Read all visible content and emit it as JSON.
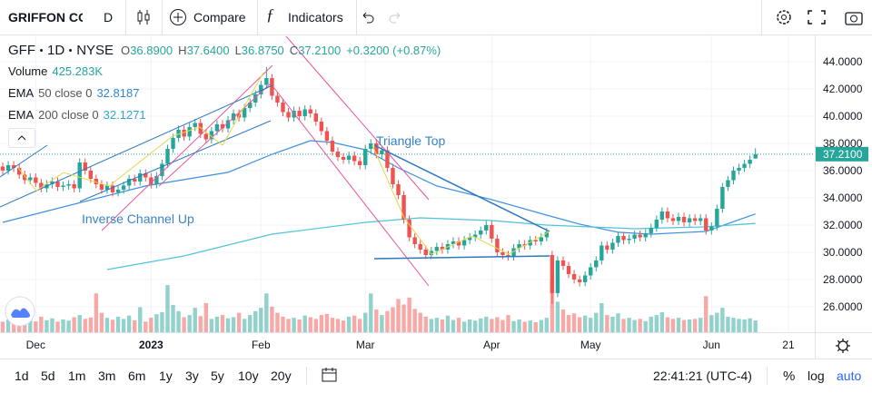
{
  "toolbar": {
    "symbol": "GRIFFON CO",
    "interval": "D",
    "compare": "Compare",
    "indicators": "Indicators"
  },
  "legend": {
    "ticker": "GFF",
    "interval": "1D",
    "exchange": "NYSE",
    "o_label": "O",
    "open": "36.8900",
    "h_label": "H",
    "high": "37.6400",
    "l_label": "L",
    "low": "36.8750",
    "c_label": "C",
    "close": "37.2100",
    "change": "+0.3200 (+0.87%)",
    "volume_label": "Volume",
    "volume": "425.283K",
    "ema50_name": "EMA",
    "ema50_params": "50 close 0",
    "ema50_value": "32.8187",
    "ema200_name": "EMA",
    "ema200_params": "200 close 0",
    "ema200_value": "32.1271"
  },
  "chart_data": {
    "type": "candlestick",
    "up_color": "#26a69a",
    "down_color": "#ef5350",
    "grid": true,
    "xlim": [
      -0.5,
      147.8
    ],
    "ylim": [
      24.13,
      46
    ],
    "xticks": [
      {
        "value": 6,
        "label": "Dec"
      },
      {
        "value": 27,
        "label": "2023"
      },
      {
        "value": 47,
        "label": "Feb"
      },
      {
        "value": 66,
        "label": "Mar"
      },
      {
        "value": 89,
        "label": "Apr"
      },
      {
        "value": 107,
        "label": "May"
      },
      {
        "value": 129,
        "label": "Jun"
      },
      {
        "value": 143,
        "label": "21"
      }
    ],
    "yticks": [
      {
        "value": 44,
        "label": "44.0000"
      },
      {
        "value": 42,
        "label": "42.0000"
      },
      {
        "value": 40,
        "label": "40.0000"
      },
      {
        "value": 38,
        "label": "38.0000"
      },
      {
        "value": 36,
        "label": "36.0000"
      },
      {
        "value": 34,
        "label": "34.0000"
      },
      {
        "value": 32,
        "label": "32.0000"
      },
      {
        "value": 30,
        "label": "30.0000"
      },
      {
        "value": 28,
        "label": "28.0000"
      },
      {
        "value": 26,
        "label": "26.0000"
      }
    ],
    "last_label": "37.2100",
    "annotations": [
      "Triangle Top",
      "Inverse Channel Up"
    ],
    "ohlc": [
      [
        36.3,
        36.6,
        35.7,
        36.0
      ],
      [
        36.0,
        36.7,
        35.7,
        36.4
      ],
      [
        36.4,
        36.7,
        35.9,
        36.2
      ],
      [
        36.2,
        36.5,
        35.4,
        35.7
      ],
      [
        35.7,
        36.0,
        35.0,
        35.3
      ],
      [
        35.3,
        35.8,
        35.0,
        35.5
      ],
      [
        35.5,
        35.8,
        34.8,
        35.1
      ],
      [
        35.1,
        35.4,
        34.4,
        34.7
      ],
      [
        34.7,
        35.3,
        34.4,
        35.0
      ],
      [
        35.0,
        35.5,
        34.7,
        35.2
      ],
      [
        35.2,
        35.5,
        34.5,
        34.8
      ],
      [
        34.8,
        35.2,
        34.5,
        34.9
      ],
      [
        34.9,
        35.3,
        34.6,
        35.0
      ],
      [
        35.0,
        35.3,
        34.4,
        34.7
      ],
      [
        34.7,
        36.9,
        34.4,
        36.6
      ],
      [
        36.6,
        36.9,
        35.7,
        36.0
      ],
      [
        36.0,
        36.3,
        35.1,
        35.4
      ],
      [
        35.4,
        35.7,
        34.7,
        35.0
      ],
      [
        35.0,
        35.3,
        34.3,
        34.6
      ],
      [
        34.6,
        35.2,
        34.3,
        34.9
      ],
      [
        34.9,
        35.2,
        34.1,
        34.4
      ],
      [
        34.4,
        34.9,
        34.1,
        34.6
      ],
      [
        34.6,
        35.2,
        34.3,
        34.9
      ],
      [
        34.9,
        35.7,
        34.6,
        35.4
      ],
      [
        35.4,
        35.7,
        34.9,
        35.2
      ],
      [
        35.2,
        36.1,
        34.9,
        35.8
      ],
      [
        35.8,
        36.1,
        35.2,
        35.5
      ],
      [
        35.5,
        35.8,
        34.7,
        35.0
      ],
      [
        35.0,
        35.9,
        34.7,
        35.6
      ],
      [
        35.6,
        36.8,
        35.3,
        36.5
      ],
      [
        36.5,
        37.9,
        36.2,
        37.6
      ],
      [
        37.6,
        38.7,
        37.3,
        38.4
      ],
      [
        38.4,
        39.3,
        38.1,
        39.0
      ],
      [
        39.0,
        39.3,
        38.2,
        38.5
      ],
      [
        38.5,
        39.5,
        38.2,
        39.2
      ],
      [
        39.2,
        39.8,
        38.9,
        39.5
      ],
      [
        39.5,
        39.8,
        38.4,
        38.7
      ],
      [
        38.7,
        39.0,
        38.0,
        38.3
      ],
      [
        38.3,
        39.2,
        38.0,
        38.9
      ],
      [
        38.9,
        39.7,
        38.6,
        39.4
      ],
      [
        39.4,
        39.7,
        38.8,
        39.1
      ],
      [
        39.1,
        40.0,
        38.8,
        39.7
      ],
      [
        39.7,
        40.5,
        39.4,
        40.2
      ],
      [
        40.2,
        40.5,
        39.6,
        39.9
      ],
      [
        39.9,
        40.9,
        39.6,
        40.6
      ],
      [
        40.6,
        41.3,
        40.3,
        41.0
      ],
      [
        41.0,
        41.9,
        40.7,
        41.6
      ],
      [
        41.6,
        42.6,
        41.3,
        42.3
      ],
      [
        42.3,
        43.6,
        42.0,
        42.8
      ],
      [
        42.8,
        43.1,
        41.2,
        41.5
      ],
      [
        41.5,
        41.8,
        40.7,
        41.0
      ],
      [
        41.0,
        41.3,
        40.0,
        40.3
      ],
      [
        40.3,
        40.6,
        39.6,
        39.9
      ],
      [
        39.9,
        40.7,
        39.6,
        40.4
      ],
      [
        40.4,
        40.7,
        39.7,
        40.0
      ],
      [
        40.0,
        40.8,
        39.7,
        40.5
      ],
      [
        40.5,
        40.8,
        39.9,
        40.2
      ],
      [
        40.2,
        40.5,
        39.3,
        39.6
      ],
      [
        39.6,
        39.9,
        38.6,
        38.9
      ],
      [
        38.9,
        39.2,
        37.9,
        38.2
      ],
      [
        38.2,
        38.5,
        37.1,
        37.4
      ],
      [
        37.4,
        37.7,
        36.7,
        37.0
      ],
      [
        37.0,
        37.3,
        36.5,
        36.8
      ],
      [
        36.8,
        37.4,
        36.5,
        37.1
      ],
      [
        37.1,
        37.4,
        36.4,
        36.7
      ],
      [
        36.7,
        37.0,
        36.1,
        36.4
      ],
      [
        36.4,
        37.9,
        36.1,
        37.6
      ],
      [
        37.6,
        38.3,
        37.3,
        38.0
      ],
      [
        38.0,
        38.3,
        36.9,
        37.2
      ],
      [
        37.2,
        37.8,
        36.9,
        37.5
      ],
      [
        37.5,
        37.8,
        35.9,
        36.2
      ],
      [
        36.2,
        36.5,
        34.7,
        35.0
      ],
      [
        35.0,
        35.3,
        33.9,
        34.2
      ],
      [
        34.2,
        34.5,
        32.1,
        32.4
      ],
      [
        32.4,
        32.7,
        30.8,
        31.1
      ],
      [
        31.1,
        31.4,
        30.3,
        30.6
      ],
      [
        30.6,
        30.9,
        29.9,
        30.2
      ],
      [
        30.2,
        30.5,
        29.5,
        29.8
      ],
      [
        29.8,
        30.4,
        29.5,
        30.1
      ],
      [
        30.1,
        30.7,
        29.8,
        30.4
      ],
      [
        30.4,
        30.7,
        29.9,
        30.2
      ],
      [
        30.2,
        30.9,
        29.9,
        30.6
      ],
      [
        30.6,
        31.1,
        30.3,
        30.8
      ],
      [
        30.8,
        31.1,
        30.2,
        30.5
      ],
      [
        30.5,
        31.2,
        30.2,
        30.9
      ],
      [
        30.9,
        31.4,
        30.6,
        31.1
      ],
      [
        31.1,
        31.6,
        30.8,
        31.3
      ],
      [
        31.3,
        31.9,
        31.0,
        31.6
      ],
      [
        31.6,
        32.3,
        31.3,
        32.0
      ],
      [
        32.0,
        32.3,
        30.7,
        31.0
      ],
      [
        31.0,
        31.3,
        29.7,
        30.0
      ],
      [
        30.0,
        30.3,
        29.5,
        29.8
      ],
      [
        29.8,
        30.1,
        29.4,
        29.7
      ],
      [
        29.7,
        30.6,
        29.4,
        30.3
      ],
      [
        30.3,
        30.9,
        30.0,
        30.6
      ],
      [
        30.6,
        30.9,
        30.2,
        30.5
      ],
      [
        30.5,
        31.2,
        30.2,
        30.9
      ],
      [
        30.9,
        31.2,
        30.5,
        30.8
      ],
      [
        30.8,
        31.4,
        30.5,
        31.1
      ],
      [
        31.1,
        31.8,
        30.8,
        31.5
      ],
      [
        29.8,
        30.1,
        26.2,
        27.0
      ],
      [
        27.0,
        29.7,
        26.7,
        29.4
      ],
      [
        29.4,
        29.7,
        28.7,
        29.0
      ],
      [
        29.0,
        29.3,
        28.1,
        28.4
      ],
      [
        28.4,
        28.7,
        27.7,
        28.0
      ],
      [
        28.0,
        28.3,
        27.5,
        27.8
      ],
      [
        27.8,
        28.6,
        27.5,
        28.3
      ],
      [
        28.3,
        29.2,
        28.0,
        28.9
      ],
      [
        28.9,
        29.7,
        28.6,
        29.4
      ],
      [
        29.4,
        30.8,
        29.1,
        30.5
      ],
      [
        30.5,
        30.8,
        29.9,
        30.2
      ],
      [
        30.2,
        31.0,
        29.9,
        30.7
      ],
      [
        30.7,
        31.5,
        30.4,
        31.2
      ],
      [
        31.2,
        31.5,
        30.6,
        30.9
      ],
      [
        30.9,
        31.3,
        30.6,
        31.0
      ],
      [
        31.0,
        31.6,
        30.7,
        31.3
      ],
      [
        31.3,
        31.6,
        30.8,
        31.1
      ],
      [
        31.1,
        31.7,
        30.8,
        31.4
      ],
      [
        31.4,
        32.1,
        31.1,
        31.8
      ],
      [
        31.8,
        32.7,
        31.5,
        32.4
      ],
      [
        32.4,
        33.3,
        32.1,
        33.0
      ],
      [
        33.0,
        33.3,
        32.2,
        32.5
      ],
      [
        32.5,
        32.8,
        32.0,
        32.3
      ],
      [
        32.3,
        32.9,
        32.0,
        32.6
      ],
      [
        32.6,
        32.9,
        31.9,
        32.2
      ],
      [
        32.2,
        32.8,
        31.9,
        32.5
      ],
      [
        32.5,
        32.8,
        32.0,
        32.3
      ],
      [
        32.3,
        32.8,
        32.0,
        32.5
      ],
      [
        32.5,
        32.8,
        31.3,
        31.6
      ],
      [
        31.6,
        32.2,
        31.3,
        31.9
      ],
      [
        31.9,
        33.5,
        31.6,
        33.2
      ],
      [
        33.2,
        35.1,
        32.9,
        34.8
      ],
      [
        34.8,
        35.6,
        34.5,
        35.3
      ],
      [
        35.3,
        36.3,
        35.0,
        36.0
      ],
      [
        36.0,
        36.5,
        35.7,
        36.2
      ],
      [
        36.2,
        36.8,
        35.9,
        36.5
      ],
      [
        36.5,
        37.1,
        36.2,
        36.8
      ],
      [
        36.89,
        37.64,
        36.875,
        37.21
      ]
    ],
    "volume": [
      380000,
      450000,
      520000,
      400000,
      610000,
      470000,
      390000,
      560000,
      430000,
      500000,
      380000,
      460000,
      420000,
      540000,
      620000,
      480000,
      530000,
      1400000,
      700000,
      520000,
      450000,
      560000,
      480000,
      600000,
      430000,
      900000,
      380000,
      520000,
      650000,
      720000,
      1700000,
      980000,
      760000,
      540000,
      620000,
      880000,
      580000,
      1050000,
      480000,
      560000,
      620000,
      500000,
      540000,
      700000,
      480000,
      620000,
      760000,
      880000,
      1400000,
      920000,
      700000,
      560000,
      480000,
      520000,
      460000,
      600000,
      540000,
      480000,
      620000,
      660000,
      520000,
      480000,
      420000,
      560000,
      600000,
      480000,
      700000,
      1400000,
      820000,
      620000,
      760000,
      900000,
      1200000,
      1000000,
      1250000,
      840000,
      700000,
      560000,
      480000,
      520000,
      460000,
      600000,
      440000,
      520000,
      380000,
      460000,
      420000,
      500000,
      560000,
      480000,
      540000,
      440000,
      620000,
      400000,
      460000,
      380000,
      420000,
      360000,
      440000,
      520000,
      1900000,
      1100000,
      820000,
      620000,
      680000,
      540000,
      600000,
      520000,
      700000,
      1050000,
      620000,
      560000,
      680000,
      480000,
      520000,
      440000,
      480000,
      400000,
      560000,
      620000,
      720000,
      540000,
      480000,
      520000,
      440000,
      460000,
      480000,
      520000,
      1300000,
      620000,
      700000,
      880000,
      560000,
      520000,
      480000,
      460000,
      500000,
      425283
    ],
    "overlays": [
      {
        "color": "#3d8fe0",
        "x": [
          0,
          26,
          41,
          49,
          56,
          60,
          66,
          72,
          79,
          89,
          99,
          105,
          112,
          118,
          128,
          137
        ],
        "values": [
          32.2,
          34.87,
          35.87,
          37.2,
          38.2,
          38.07,
          37.53,
          36.2,
          34.87,
          33.87,
          32.73,
          32.07,
          31.47,
          31.33,
          31.53,
          32.8187
        ]
      },
      {
        "color": "#4fc3d9",
        "x": [
          19,
          33,
          49,
          66,
          76,
          89,
          99,
          115,
          128,
          137
        ],
        "values": [
          28.73,
          29.73,
          31.33,
          32.2,
          32.53,
          32.33,
          32.0,
          31.73,
          31.87,
          32.1271
        ]
      }
    ]
  },
  "bottom_bar": {
    "ranges": [
      "1d",
      "5d",
      "1m",
      "3m",
      "6m",
      "1y",
      "3y",
      "5y",
      "10y",
      "20y"
    ],
    "time": "22:41:21 (UTC-4)",
    "percent": "%",
    "log": "log",
    "auto": "auto"
  }
}
